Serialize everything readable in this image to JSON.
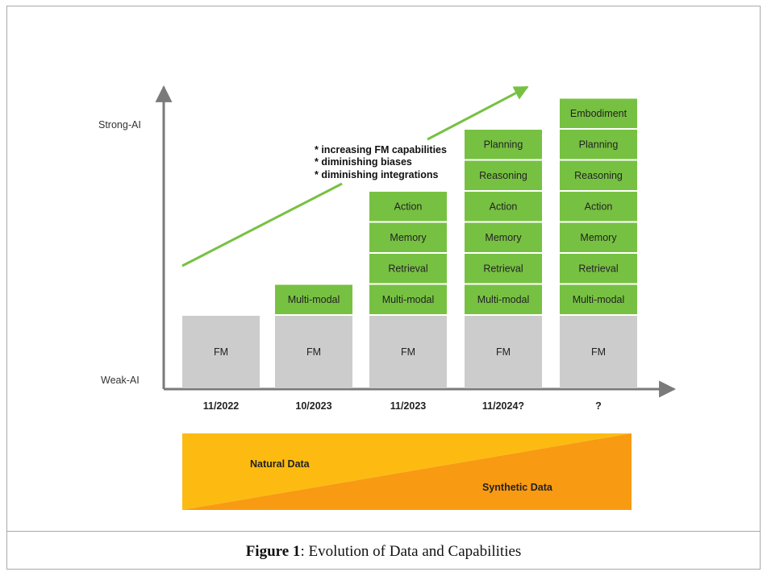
{
  "y_axis": {
    "top_label": "Strong-AI",
    "bottom_label": "Weak-AI"
  },
  "trend": {
    "notes": [
      "* increasing FM capabilities",
      "* diminishing biases",
      "* diminishing integrations"
    ]
  },
  "columns": [
    {
      "label": "11/2022",
      "base": "FM",
      "layers": []
    },
    {
      "label": "10/2023",
      "base": "FM",
      "layers": [
        "Multi-modal"
      ]
    },
    {
      "label": "11/2023",
      "base": "FM",
      "layers": [
        "Multi-modal",
        "Retrieval",
        "Memory",
        "Action"
      ]
    },
    {
      "label": "11/2024?",
      "base": "FM",
      "layers": [
        "Multi-modal",
        "Retrieval",
        "Memory",
        "Action",
        "Reasoning",
        "Planning"
      ]
    },
    {
      "label": "?",
      "base": "FM",
      "layers": [
        "Multi-modal",
        "Retrieval",
        "Memory",
        "Action",
        "Reasoning",
        "Planning",
        "Embodiment"
      ]
    }
  ],
  "data_band": {
    "natural": "Natural Data",
    "synthetic": "Synthetic Data"
  },
  "caption": {
    "prefix": "Figure 1",
    "text": ": Evolution of Data and Capabilities"
  },
  "colors": {
    "fm_gray": "#cccccc",
    "layer_green": "#77c142",
    "axis": "#7a7a7a",
    "natural": "#fdbb12",
    "synthetic": "#f89a12"
  }
}
